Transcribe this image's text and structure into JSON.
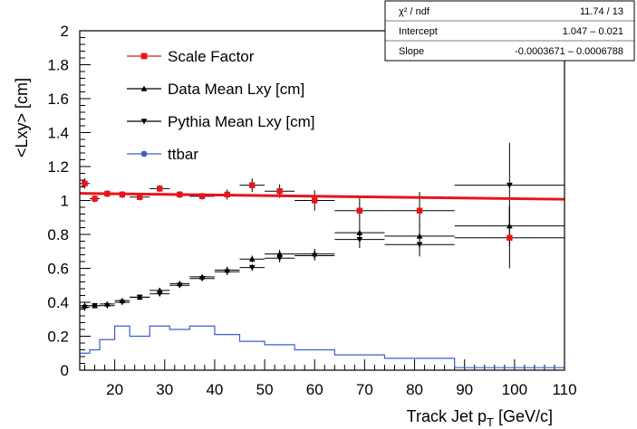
{
  "chart_data": {
    "type": "scatter",
    "title": "",
    "xlabel": "Track Jet p",
    "xlabel_sub": "T",
    "xlabel_unit": " [GeV/c]",
    "ylabel": "<Lxy> [cm]",
    "xlim": [
      13,
      110
    ],
    "ylim": [
      0,
      2
    ],
    "x_ticks": [
      20,
      30,
      40,
      50,
      60,
      70,
      80,
      90,
      100,
      110
    ],
    "y_ticks": [
      0,
      0.2,
      0.4,
      0.6,
      0.8,
      1,
      1.2,
      1.4,
      1.6,
      1.8,
      2
    ],
    "legend_placement": "top-left",
    "stats_box": {
      "rows": [
        {
          "label": "χ² / ndf",
          "value": "11.74 / 13"
        },
        {
          "label": "Intercept",
          "value": "1.047 – 0.021"
        },
        {
          "label": "Slope",
          "value": "-0.0003671 – 0.0006788"
        }
      ]
    },
    "fit_line": {
      "color": "#e8141c",
      "x": [
        13,
        110
      ],
      "y": [
        1.042,
        1.007
      ]
    },
    "series": [
      {
        "name": "Scale Factor",
        "marker": "square",
        "color": "#e8141c",
        "points": [
          {
            "x": 14,
            "xerr": 1,
            "y": 1.1,
            "yerr": 0.03
          },
          {
            "x": 16,
            "xerr": 1,
            "y": 1.01,
            "yerr": 0.02
          },
          {
            "x": 18.5,
            "xerr": 1.5,
            "y": 1.04,
            "yerr": 0.02
          },
          {
            "x": 21.5,
            "xerr": 1.5,
            "y": 1.035,
            "yerr": 0.02
          },
          {
            "x": 25,
            "xerr": 2,
            "y": 1.02,
            "yerr": 0.02
          },
          {
            "x": 29,
            "xerr": 2,
            "y": 1.07,
            "yerr": 0.02
          },
          {
            "x": 33,
            "xerr": 2,
            "y": 1.035,
            "yerr": 0.02
          },
          {
            "x": 37.5,
            "xerr": 2.5,
            "y": 1.025,
            "yerr": 0.02
          },
          {
            "x": 42.5,
            "xerr": 2.5,
            "y": 1.035,
            "yerr": 0.03
          },
          {
            "x": 47.5,
            "xerr": 2.5,
            "y": 1.09,
            "yerr": 0.04
          },
          {
            "x": 53,
            "xerr": 3,
            "y": 1.055,
            "yerr": 0.04
          },
          {
            "x": 60,
            "xerr": 4,
            "y": 1.0,
            "yerr": 0.06
          },
          {
            "x": 69,
            "xerr": 5,
            "y": 0.94,
            "yerr": 0.08
          },
          {
            "x": 81,
            "xerr": 7,
            "y": 0.94,
            "yerr": 0.11
          },
          {
            "x": 99,
            "xerr": 11,
            "y": 0.78,
            "yerr": 0.18
          }
        ]
      },
      {
        "name": "Data Mean Lxy [cm]",
        "marker": "triangle-up",
        "color": "#000000",
        "points": [
          {
            "x": 14,
            "xerr": 1,
            "y": 0.38,
            "yerr": 0.02
          },
          {
            "x": 16,
            "xerr": 1,
            "y": 0.38,
            "yerr": 0.01
          },
          {
            "x": 18.5,
            "xerr": 1.5,
            "y": 0.39,
            "yerr": 0.01
          },
          {
            "x": 21.5,
            "xerr": 1.5,
            "y": 0.41,
            "yerr": 0.01
          },
          {
            "x": 25,
            "xerr": 2,
            "y": 0.43,
            "yerr": 0.01
          },
          {
            "x": 29,
            "xerr": 2,
            "y": 0.47,
            "yerr": 0.015
          },
          {
            "x": 33,
            "xerr": 2,
            "y": 0.51,
            "yerr": 0.015
          },
          {
            "x": 37.5,
            "xerr": 2.5,
            "y": 0.55,
            "yerr": 0.015
          },
          {
            "x": 42.5,
            "xerr": 2.5,
            "y": 0.59,
            "yerr": 0.02
          },
          {
            "x": 47.5,
            "xerr": 2.5,
            "y": 0.655,
            "yerr": 0.02
          },
          {
            "x": 53,
            "xerr": 3,
            "y": 0.685,
            "yerr": 0.025
          },
          {
            "x": 60,
            "xerr": 4,
            "y": 0.685,
            "yerr": 0.03
          },
          {
            "x": 69,
            "xerr": 5,
            "y": 0.81,
            "yerr": 0.05
          },
          {
            "x": 81,
            "xerr": 7,
            "y": 0.79,
            "yerr": 0.07
          },
          {
            "x": 99,
            "xerr": 11,
            "y": 0.85,
            "yerr": 0.12
          }
        ]
      },
      {
        "name": "Pythia Mean Lxy [cm]",
        "marker": "triangle-down",
        "color": "#000000",
        "points": [
          {
            "x": 14,
            "xerr": 1,
            "y": 0.37,
            "yerr": 0.02
          },
          {
            "x": 16,
            "xerr": 1,
            "y": 0.38,
            "yerr": 0.01
          },
          {
            "x": 18.5,
            "xerr": 1.5,
            "y": 0.38,
            "yerr": 0.01
          },
          {
            "x": 21.5,
            "xerr": 1.5,
            "y": 0.4,
            "yerr": 0.01
          },
          {
            "x": 25,
            "xerr": 2,
            "y": 0.43,
            "yerr": 0.01
          },
          {
            "x": 29,
            "xerr": 2,
            "y": 0.45,
            "yerr": 0.015
          },
          {
            "x": 33,
            "xerr": 2,
            "y": 0.5,
            "yerr": 0.015
          },
          {
            "x": 37.5,
            "xerr": 2.5,
            "y": 0.54,
            "yerr": 0.015
          },
          {
            "x": 42.5,
            "xerr": 2.5,
            "y": 0.58,
            "yerr": 0.02
          },
          {
            "x": 47.5,
            "xerr": 2.5,
            "y": 0.605,
            "yerr": 0.02
          },
          {
            "x": 53,
            "xerr": 3,
            "y": 0.66,
            "yerr": 0.025
          },
          {
            "x": 60,
            "xerr": 4,
            "y": 0.675,
            "yerr": 0.03
          },
          {
            "x": 69,
            "xerr": 5,
            "y": 0.77,
            "yerr": 0.05
          },
          {
            "x": 81,
            "xerr": 7,
            "y": 0.74,
            "yerr": 0.07
          },
          {
            "x": 99,
            "xerr": 11,
            "y": 1.09,
            "yerr": 0.25
          }
        ]
      },
      {
        "name": "ttbar",
        "marker": "circle",
        "color": "#3a5fcd",
        "style": "step",
        "bins": [
          {
            "x0": 13,
            "x1": 15,
            "y": 0.1
          },
          {
            "x0": 15,
            "x1": 17,
            "y": 0.12
          },
          {
            "x0": 17,
            "x1": 20,
            "y": 0.18
          },
          {
            "x0": 20,
            "x1": 23,
            "y": 0.26
          },
          {
            "x0": 23,
            "x1": 27,
            "y": 0.2
          },
          {
            "x0": 27,
            "x1": 31,
            "y": 0.26
          },
          {
            "x0": 31,
            "x1": 35,
            "y": 0.24
          },
          {
            "x0": 35,
            "x1": 40,
            "y": 0.26
          },
          {
            "x0": 40,
            "x1": 45,
            "y": 0.21
          },
          {
            "x0": 45,
            "x1": 50,
            "y": 0.17
          },
          {
            "x0": 50,
            "x1": 56,
            "y": 0.15
          },
          {
            "x0": 56,
            "x1": 64,
            "y": 0.12
          },
          {
            "x0": 64,
            "x1": 74,
            "y": 0.09
          },
          {
            "x0": 74,
            "x1": 88,
            "y": 0.07
          },
          {
            "x0": 88,
            "x1": 110,
            "y": 0.015
          }
        ]
      }
    ]
  }
}
